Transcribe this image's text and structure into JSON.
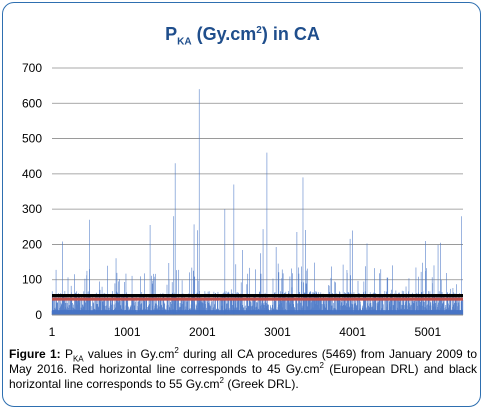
{
  "chart_data": {
    "type": "bar",
    "title_main": "P",
    "title_sub": "KA",
    "title_unit_open": " (Gy.cm",
    "title_unit_sup": "2",
    "title_unit_close": ") in CA",
    "xlabel": "",
    "ylabel": "",
    "x_range": [
      1,
      5469
    ],
    "xticks": [
      "1",
      "1001",
      "2001",
      "3001",
      "4001",
      "5001"
    ],
    "xtick_values": [
      1,
      1001,
      2001,
      3001,
      4001,
      5001
    ],
    "ylim": [
      0,
      700
    ],
    "yticks": [
      "0",
      "100",
      "200",
      "300",
      "400",
      "500",
      "600",
      "700"
    ],
    "ytick_values": [
      0,
      100,
      200,
      300,
      400,
      500,
      600,
      700
    ],
    "grid": true,
    "series_color": "#4472c4",
    "reference_lines": [
      {
        "value": 45,
        "color": "#c0504d"
      },
      {
        "value": 55,
        "color": "#000000"
      }
    ],
    "peaks": [
      {
        "x": 500,
        "value": 270
      },
      {
        "x": 1620,
        "value": 280
      },
      {
        "x": 1640,
        "value": 430
      },
      {
        "x": 1960,
        "value": 640
      },
      {
        "x": 2300,
        "value": 300
      },
      {
        "x": 2420,
        "value": 370
      },
      {
        "x": 2860,
        "value": 460
      },
      {
        "x": 3340,
        "value": 390
      },
      {
        "x": 5450,
        "value": 280
      }
    ]
  },
  "caption": {
    "label": "Figure 1:",
    "p1": " P",
    "sub": "KA",
    "p2": " values in Gy.cm",
    "sup1": "2",
    "p3": " during all CA procedures (5469) from January 2009 to May 2016. Red horizontal line corresponds to 45 Gy.cm",
    "sup2": "2",
    "p4": " (European DRL) and black horizontal line corresponds to 55 Gy.cm",
    "sup3": "2",
    "p5": " (Greek DRL)."
  }
}
